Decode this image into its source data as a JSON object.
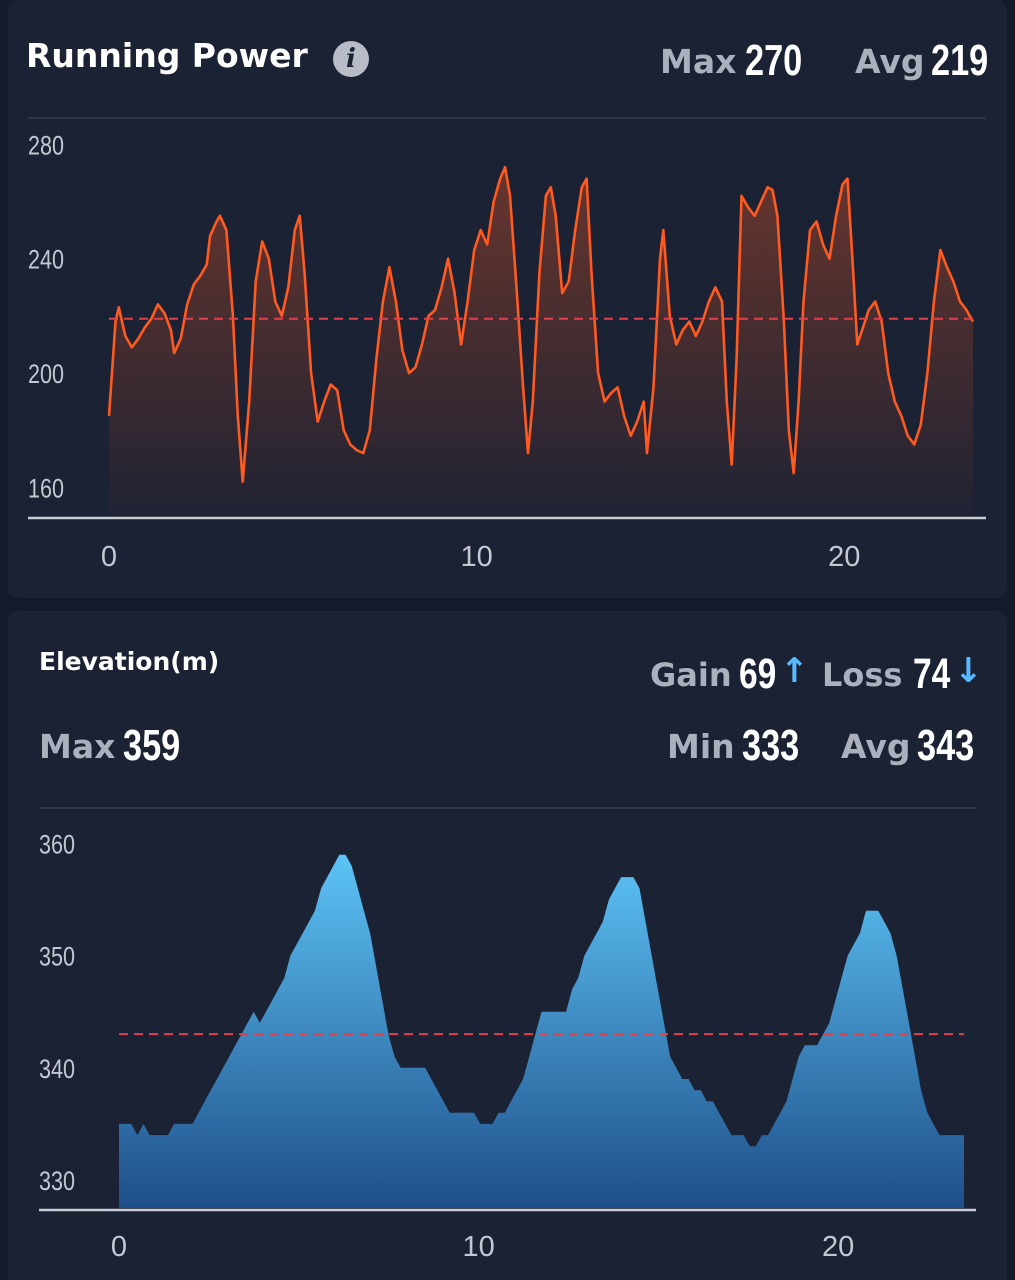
{
  "power": {
    "title": "Running Power",
    "max_label": "Max",
    "max_value": "270",
    "avg_label": "Avg",
    "avg_value": "219"
  },
  "elevation": {
    "title": "Elevation(m)",
    "gain_label": "Gain",
    "gain_value": "69",
    "gain_arrow": "↑",
    "loss_label": "Loss",
    "loss_value": "74",
    "loss_arrow": "↓",
    "max_label": "Max",
    "max_value": "359",
    "min_label": "Min",
    "min_value": "333",
    "avg_label": "Avg",
    "avg_value": "343"
  },
  "colors": {
    "background": "#131a2a",
    "card": "#1b2234",
    "power_line": "#ff5a1f",
    "avg_line": "#e0424a",
    "elevation_fill_top": "#5cc3f5",
    "elevation_fill_bottom": "#1f4f8a",
    "gain_loss_arrow": "#5ab8ff"
  },
  "chart_data": [
    {
      "type": "line",
      "name": "power-chart",
      "xlim": [
        0,
        23.5
      ],
      "ylim": [
        150,
        285
      ],
      "x_ticks": [
        0,
        10,
        20
      ],
      "y_ticks": [
        160,
        200,
        240,
        280
      ],
      "avg_line": 219,
      "fill": true,
      "grid": false,
      "points": [
        [
          0,
          185
        ],
        [
          0.2,
          218
        ],
        [
          0.3,
          223
        ],
        [
          0.5,
          213
        ],
        [
          0.7,
          209
        ],
        [
          0.9,
          212
        ],
        [
          1.1,
          216
        ],
        [
          1.3,
          219
        ],
        [
          1.5,
          224
        ],
        [
          1.7,
          221
        ],
        [
          1.9,
          215
        ],
        [
          2.0,
          207
        ],
        [
          2.2,
          212
        ],
        [
          2.4,
          224
        ],
        [
          2.6,
          231
        ],
        [
          2.8,
          234
        ],
        [
          3.0,
          238
        ],
        [
          3.1,
          248
        ],
        [
          3.3,
          253
        ],
        [
          3.4,
          255
        ],
        [
          3.6,
          250
        ],
        [
          3.8,
          220
        ],
        [
          3.95,
          185
        ],
        [
          4.1,
          162
        ],
        [
          4.3,
          190
        ],
        [
          4.5,
          232
        ],
        [
          4.7,
          246
        ],
        [
          4.9,
          240
        ],
        [
          5.1,
          225
        ],
        [
          5.3,
          220
        ],
        [
          5.5,
          230
        ],
        [
          5.7,
          250
        ],
        [
          5.85,
          255
        ],
        [
          6.0,
          235
        ],
        [
          6.2,
          200
        ],
        [
          6.4,
          183
        ],
        [
          6.6,
          190
        ],
        [
          6.8,
          196
        ],
        [
          7.0,
          194
        ],
        [
          7.2,
          180
        ],
        [
          7.4,
          175
        ],
        [
          7.6,
          173
        ],
        [
          7.8,
          172
        ],
        [
          8.0,
          180
        ],
        [
          8.2,
          205
        ],
        [
          8.4,
          225
        ],
        [
          8.6,
          237
        ],
        [
          8.8,
          225
        ],
        [
          9.0,
          208
        ],
        [
          9.2,
          200
        ],
        [
          9.4,
          202
        ],
        [
          9.6,
          210
        ],
        [
          9.8,
          220
        ],
        [
          10.0,
          222
        ],
        [
          10.2,
          230
        ],
        [
          10.4,
          240
        ],
        [
          10.6,
          228
        ],
        [
          10.8,
          210
        ],
        [
          11.0,
          225
        ],
        [
          11.2,
          243
        ],
        [
          11.4,
          250
        ],
        [
          11.6,
          245
        ],
        [
          11.8,
          260
        ],
        [
          12.0,
          268
        ],
        [
          12.15,
          272
        ],
        [
          12.3,
          262
        ],
        [
          12.5,
          230
        ],
        [
          12.7,
          195
        ],
        [
          12.85,
          172
        ],
        [
          13.0,
          190
        ],
        [
          13.2,
          235
        ],
        [
          13.4,
          262
        ],
        [
          13.55,
          265
        ],
        [
          13.7,
          255
        ],
        [
          13.9,
          228
        ],
        [
          14.1,
          232
        ],
        [
          14.3,
          250
        ],
        [
          14.5,
          265
        ],
        [
          14.65,
          268
        ],
        [
          14.8,
          235
        ],
        [
          15.0,
          200
        ],
        [
          15.2,
          190
        ],
        [
          15.4,
          193
        ],
        [
          15.6,
          195
        ],
        [
          15.8,
          185
        ],
        [
          16.0,
          178
        ],
        [
          16.2,
          183
        ],
        [
          16.4,
          190
        ],
        [
          16.5,
          172
        ],
        [
          16.7,
          195
        ],
        [
          16.9,
          240
        ],
        [
          17.0,
          250
        ],
        [
          17.2,
          220
        ],
        [
          17.4,
          210
        ],
        [
          17.6,
          215
        ],
        [
          17.8,
          218
        ],
        [
          18.0,
          213
        ],
        [
          18.2,
          218
        ],
        [
          18.4,
          225
        ],
        [
          18.6,
          230
        ],
        [
          18.8,
          225
        ],
        [
          18.95,
          190
        ],
        [
          19.1,
          168
        ],
        [
          19.25,
          205
        ],
        [
          19.4,
          262
        ],
        [
          19.6,
          258
        ],
        [
          19.8,
          255
        ],
        [
          20.0,
          260
        ],
        [
          20.2,
          265
        ],
        [
          20.35,
          264
        ],
        [
          20.5,
          255
        ],
        [
          20.7,
          218
        ],
        [
          20.85,
          180
        ],
        [
          21.0,
          165
        ],
        [
          21.15,
          190
        ],
        [
          21.3,
          225
        ],
        [
          21.5,
          250
        ],
        [
          21.7,
          253
        ],
        [
          21.9,
          245
        ],
        [
          22.1,
          240
        ],
        [
          22.3,
          255
        ],
        [
          22.5,
          266
        ],
        [
          22.65,
          268
        ],
        [
          22.8,
          240
        ],
        [
          22.95,
          210
        ],
        [
          23.1,
          215
        ],
        [
          23.3,
          222
        ],
        [
          23.5,
          225
        ],
        [
          23.7,
          218
        ],
        [
          23.9,
          200
        ],
        [
          24.1,
          190
        ],
        [
          24.3,
          185
        ],
        [
          24.5,
          178
        ],
        [
          24.7,
          175
        ],
        [
          24.9,
          182
        ],
        [
          25.1,
          200
        ],
        [
          25.3,
          225
        ],
        [
          25.5,
          243
        ],
        [
          25.7,
          237
        ],
        [
          25.9,
          232
        ],
        [
          26.1,
          225
        ],
        [
          26.3,
          222
        ],
        [
          26.5,
          218
        ]
      ]
    },
    {
      "type": "area",
      "name": "elevation-chart",
      "xlim": [
        0,
        23.5
      ],
      "ylim": [
        327.5,
        362
      ],
      "x_ticks": [
        0,
        10,
        20
      ],
      "y_ticks": [
        330,
        340,
        350,
        360
      ],
      "avg_line": 343,
      "grid": false,
      "points": [
        [
          0,
          335
        ],
        [
          0.4,
          335
        ],
        [
          0.6,
          334
        ],
        [
          0.8,
          335
        ],
        [
          1.0,
          334
        ],
        [
          1.2,
          334
        ],
        [
          1.4,
          334
        ],
        [
          1.6,
          334
        ],
        [
          1.8,
          335
        ],
        [
          2.0,
          335
        ],
        [
          2.2,
          335
        ],
        [
          2.4,
          335
        ],
        [
          2.6,
          336
        ],
        [
          2.8,
          337
        ],
        [
          3.0,
          338
        ],
        [
          3.2,
          339
        ],
        [
          3.4,
          340
        ],
        [
          3.6,
          341
        ],
        [
          3.8,
          342
        ],
        [
          4.0,
          343
        ],
        [
          4.2,
          344
        ],
        [
          4.4,
          345
        ],
        [
          4.6,
          344
        ],
        [
          4.8,
          345
        ],
        [
          5.0,
          346
        ],
        [
          5.2,
          347
        ],
        [
          5.4,
          348
        ],
        [
          5.6,
          350
        ],
        [
          5.8,
          351
        ],
        [
          6.0,
          352
        ],
        [
          6.2,
          353
        ],
        [
          6.4,
          354
        ],
        [
          6.6,
          356
        ],
        [
          6.8,
          357
        ],
        [
          7.0,
          358
        ],
        [
          7.2,
          359
        ],
        [
          7.4,
          359
        ],
        [
          7.6,
          358
        ],
        [
          7.8,
          356
        ],
        [
          8.0,
          354
        ],
        [
          8.2,
          352
        ],
        [
          8.4,
          349
        ],
        [
          8.6,
          346
        ],
        [
          8.8,
          343
        ],
        [
          9.0,
          341
        ],
        [
          9.2,
          340
        ],
        [
          9.4,
          340
        ],
        [
          9.6,
          340
        ],
        [
          9.8,
          340
        ],
        [
          10.0,
          340
        ],
        [
          10.2,
          339
        ],
        [
          10.4,
          338
        ],
        [
          10.6,
          337
        ],
        [
          10.8,
          336
        ],
        [
          11.0,
          336
        ],
        [
          11.2,
          336
        ],
        [
          11.4,
          336
        ],
        [
          11.6,
          336
        ],
        [
          11.8,
          335
        ],
        [
          12.0,
          335
        ],
        [
          12.2,
          335
        ],
        [
          12.4,
          336
        ],
        [
          12.6,
          336
        ],
        [
          12.8,
          337
        ],
        [
          13.0,
          338
        ],
        [
          13.2,
          339
        ],
        [
          13.4,
          341
        ],
        [
          13.6,
          343
        ],
        [
          13.8,
          345
        ],
        [
          14.0,
          345
        ],
        [
          14.2,
          345
        ],
        [
          14.4,
          345
        ],
        [
          14.6,
          345
        ],
        [
          14.8,
          347
        ],
        [
          15.0,
          348
        ],
        [
          15.2,
          350
        ],
        [
          15.4,
          351
        ],
        [
          15.6,
          352
        ],
        [
          15.8,
          353
        ],
        [
          16.0,
          355
        ],
        [
          16.2,
          356
        ],
        [
          16.4,
          357
        ],
        [
          16.6,
          357
        ],
        [
          16.8,
          357
        ],
        [
          17.0,
          356
        ],
        [
          17.2,
          353
        ],
        [
          17.4,
          350
        ],
        [
          17.6,
          347
        ],
        [
          17.8,
          344
        ],
        [
          18.0,
          341
        ],
        [
          18.2,
          340
        ],
        [
          18.4,
          339
        ],
        [
          18.6,
          339
        ],
        [
          18.8,
          338
        ],
        [
          19.0,
          338
        ],
        [
          19.2,
          337
        ],
        [
          19.4,
          337
        ],
        [
          19.6,
          336
        ],
        [
          19.8,
          335
        ],
        [
          20.0,
          334
        ],
        [
          20.2,
          334
        ],
        [
          20.4,
          334
        ],
        [
          20.6,
          333
        ],
        [
          20.8,
          333
        ],
        [
          21.0,
          334
        ],
        [
          21.2,
          334
        ],
        [
          21.4,
          335
        ],
        [
          21.6,
          336
        ],
        [
          21.8,
          337
        ],
        [
          22.0,
          339
        ],
        [
          22.2,
          341
        ],
        [
          22.4,
          342
        ],
        [
          22.6,
          342
        ],
        [
          22.8,
          342
        ],
        [
          23.0,
          343
        ],
        [
          23.2,
          344
        ],
        [
          23.4,
          346
        ],
        [
          23.6,
          348
        ],
        [
          23.8,
          350
        ],
        [
          24.0,
          351
        ],
        [
          24.2,
          352
        ],
        [
          24.4,
          354
        ],
        [
          24.6,
          354
        ],
        [
          24.8,
          354
        ],
        [
          25.0,
          353
        ],
        [
          25.2,
          352
        ],
        [
          25.4,
          350
        ],
        [
          25.6,
          347
        ],
        [
          25.8,
          344
        ],
        [
          26.0,
          341
        ],
        [
          26.2,
          338
        ],
        [
          26.4,
          336
        ],
        [
          26.6,
          335
        ],
        [
          26.8,
          334
        ],
        [
          27.0,
          334
        ],
        [
          27.2,
          334
        ],
        [
          27.4,
          334
        ],
        [
          27.6,
          334
        ]
      ]
    }
  ]
}
